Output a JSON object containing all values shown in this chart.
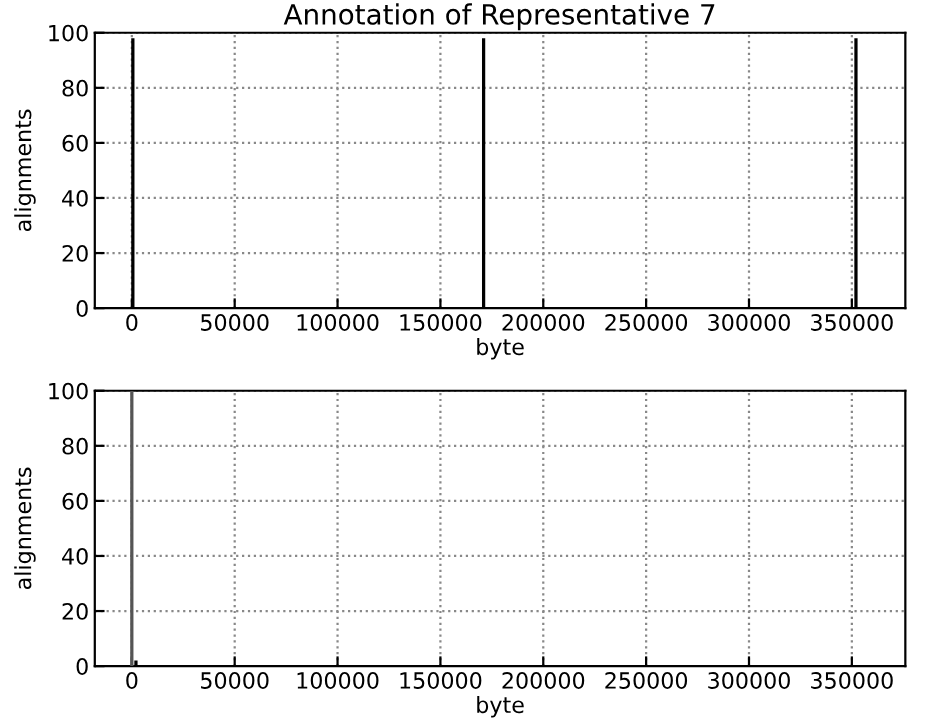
{
  "chart_data": [
    {
      "type": "bar",
      "title": "Annotation of Representative 7",
      "xlabel": "byte",
      "ylabel": "alignments",
      "series": [
        {
          "color": "#000000",
          "x": [
            500,
            171000,
            352000
          ],
          "values": [
            98,
            98,
            98
          ]
        }
      ],
      "xlim": [
        -18000,
        376000
      ],
      "xticks": [
        0,
        50000,
        100000,
        150000,
        200000,
        250000,
        300000,
        350000
      ],
      "ylim": [
        0,
        100
      ],
      "yticks": [
        0,
        20,
        40,
        60,
        80,
        100
      ],
      "grid": true
    },
    {
      "type": "bar",
      "xlabel": "byte",
      "ylabel": "alignments",
      "series": [
        {
          "color": "#555555",
          "x": [
            0
          ],
          "values": [
            100
          ]
        },
        {
          "color": "#000000",
          "x": [
            2000
          ],
          "values": [
            2
          ]
        }
      ],
      "xlim": [
        -18000,
        376000
      ],
      "xticks": [
        0,
        50000,
        100000,
        150000,
        200000,
        250000,
        300000,
        350000
      ],
      "ylim": [
        0,
        100
      ],
      "yticks": [
        0,
        20,
        40,
        60,
        80,
        100
      ],
      "grid": true
    }
  ]
}
